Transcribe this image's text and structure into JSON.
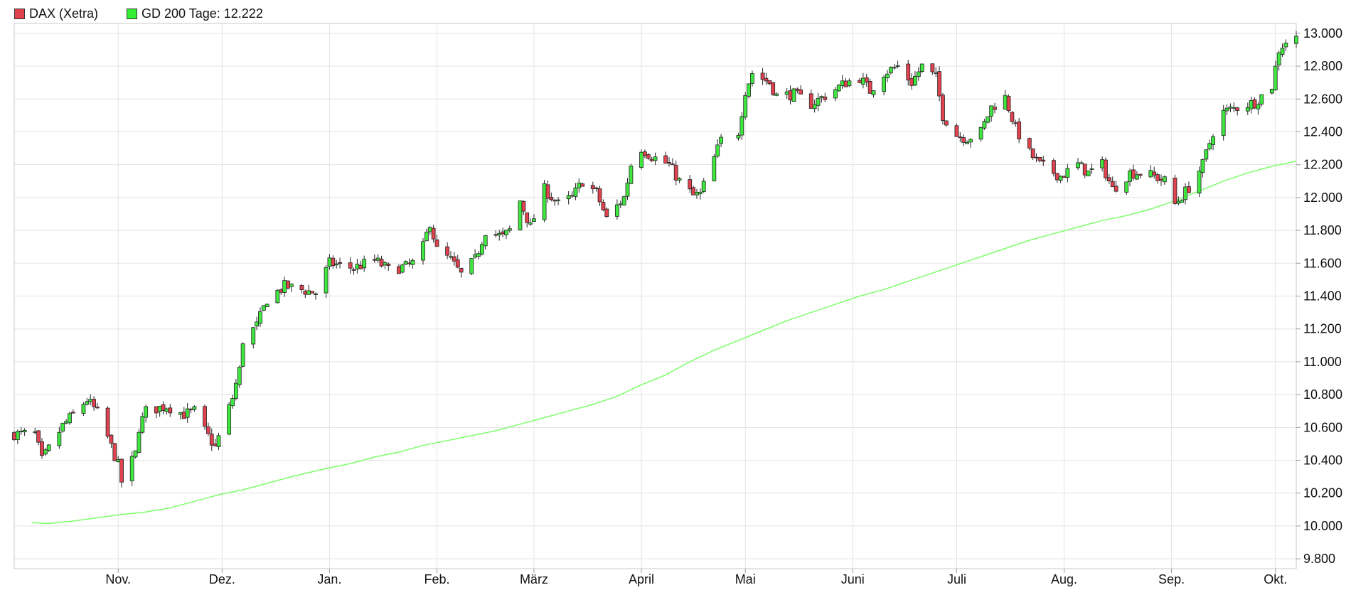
{
  "chart_data": {
    "type": "candlestick",
    "series": [
      {
        "name": "DAX (Xetra)",
        "color": "#e0424f",
        "up_color": "#3ee83e",
        "down_color": "#e0424f"
      },
      {
        "name": "GD 200 Tage: 12.222",
        "color": "#7dff6a"
      }
    ],
    "y_ticks": [
      "9.800",
      "10.000",
      "10.200",
      "10.400",
      "10.600",
      "10.800",
      "11.000",
      "11.200",
      "11.400",
      "11.600",
      "11.800",
      "12.000",
      "12.200",
      "12.400",
      "12.600",
      "12.800",
      "13.000"
    ],
    "y_tick_values": [
      9800,
      10000,
      10200,
      10400,
      10600,
      10800,
      11000,
      11200,
      11400,
      11600,
      11800,
      12000,
      12200,
      12400,
      12600,
      12800,
      13000
    ],
    "ylim": [
      9740,
      13060
    ],
    "x_labels": [
      {
        "label": "Nov.",
        "date": "2018-11-01"
      },
      {
        "label": "Dez.",
        "date": "2018-12-01"
      },
      {
        "label": "Jan.",
        "date": "2019-01-01"
      },
      {
        "label": "Feb.",
        "date": "2019-02-01"
      },
      {
        "label": "März",
        "date": "2019-03-01"
      },
      {
        "label": "April",
        "date": "2019-04-01"
      },
      {
        "label": "Mai",
        "date": "2019-05-01"
      },
      {
        "label": "Juni",
        "date": "2019-06-01"
      },
      {
        "label": "Juli",
        "date": "2019-07-01"
      },
      {
        "label": "Aug.",
        "date": "2019-08-01"
      },
      {
        "label": "Sep.",
        "date": "2019-09-01"
      },
      {
        "label": "Okt.",
        "date": "2019-10-01"
      }
    ],
    "xlim": [
      "2018-10-02",
      "2019-10-07"
    ],
    "anchors": [
      [
        "2018-10-02",
        10560
      ],
      [
        "2018-10-08",
        10560
      ],
      [
        "2018-10-10",
        10400
      ],
      [
        "2018-10-16",
        10610
      ],
      [
        "2018-10-23",
        10770
      ],
      [
        "2018-10-26",
        10690
      ],
      [
        "2018-10-29",
        10540
      ],
      [
        "2018-11-01",
        10370
      ],
      [
        "2018-11-02",
        10270
      ],
      [
        "2018-11-06",
        10440
      ],
      [
        "2018-11-07",
        10600
      ],
      [
        "2018-11-09",
        10700
      ],
      [
        "2018-11-15",
        10730
      ],
      [
        "2018-11-20",
        10680
      ],
      [
        "2018-11-23",
        10700
      ],
      [
        "2018-11-26",
        10580
      ],
      [
        "2018-11-29",
        10480
      ],
      [
        "2018-12-04",
        10780
      ],
      [
        "2018-12-06",
        10950
      ],
      [
        "2018-12-07",
        11130
      ],
      [
        "2018-12-11",
        11220
      ],
      [
        "2018-12-14",
        11380
      ],
      [
        "2018-12-19",
        11460
      ],
      [
        "2018-12-28",
        11420
      ],
      [
        "2019-01-01",
        11600
      ],
      [
        "2019-01-08",
        11570
      ],
      [
        "2019-01-14",
        11620
      ],
      [
        "2019-01-18",
        11560
      ],
      [
        "2019-01-23",
        11580
      ],
      [
        "2019-01-25",
        11600
      ],
      [
        "2019-01-28",
        11700
      ],
      [
        "2019-01-30",
        11850
      ],
      [
        "2019-02-01",
        11680
      ],
      [
        "2019-02-05",
        11620
      ],
      [
        "2019-02-08",
        11530
      ],
      [
        "2019-02-12",
        11620
      ],
      [
        "2019-02-15",
        11800
      ],
      [
        "2019-02-20",
        11760
      ],
      [
        "2019-02-22",
        11800
      ],
      [
        "2019-02-25",
        11980
      ],
      [
        "2019-02-28",
        11820
      ],
      [
        "2019-03-04",
        12050
      ],
      [
        "2019-03-08",
        11960
      ],
      [
        "2019-03-12",
        12000
      ],
      [
        "2019-03-15",
        12100
      ],
      [
        "2019-03-19",
        12030
      ],
      [
        "2019-03-22",
        11870
      ],
      [
        "2019-03-27",
        12000
      ],
      [
        "2019-03-29",
        12200
      ],
      [
        "2019-04-01",
        12300
      ],
      [
        "2019-04-04",
        12250
      ],
      [
        "2019-04-09",
        12200
      ],
      [
        "2019-04-12",
        12100
      ],
      [
        "2019-04-16",
        12010
      ],
      [
        "2019-04-18",
        12020
      ],
      [
        "2019-04-24",
        12350
      ],
      [
        "2019-04-29",
        12400
      ],
      [
        "2019-05-01",
        12650
      ],
      [
        "2019-05-03",
        12760
      ],
      [
        "2019-05-08",
        12700
      ],
      [
        "2019-05-10",
        12620
      ],
      [
        "2019-05-15",
        12630
      ],
      [
        "2019-05-20",
        12570
      ],
      [
        "2019-05-24",
        12620
      ],
      [
        "2019-05-30",
        12700
      ],
      [
        "2019-06-03",
        12730
      ],
      [
        "2019-06-06",
        12650
      ],
      [
        "2019-06-10",
        12760
      ],
      [
        "2019-06-14",
        12800
      ],
      [
        "2019-06-18",
        12700
      ],
      [
        "2019-06-21",
        12800
      ],
      [
        "2019-06-25",
        12730
      ],
      [
        "2019-06-27",
        12500
      ],
      [
        "2019-07-01",
        12380
      ],
      [
        "2019-07-04",
        12360
      ],
      [
        "2019-07-08",
        12400
      ],
      [
        "2019-07-11",
        12550
      ],
      [
        "2019-07-15",
        12610
      ],
      [
        "2019-07-18",
        12420
      ],
      [
        "2019-07-22",
        12270
      ],
      [
        "2019-07-25",
        12200
      ],
      [
        "2019-07-31",
        12130
      ],
      [
        "2019-08-05",
        12200
      ],
      [
        "2019-08-08",
        12150
      ],
      [
        "2019-08-12",
        12200
      ],
      [
        "2019-08-15",
        12050
      ],
      [
        "2019-08-20",
        12150
      ],
      [
        "2019-08-23",
        12150
      ],
      [
        "2019-08-27",
        12130
      ],
      [
        "2019-08-30",
        12100
      ],
      [
        "2019-09-02",
        11960
      ],
      [
        "2019-09-06",
        12060
      ],
      [
        "2019-09-10",
        12200
      ],
      [
        "2019-09-13",
        12400
      ],
      [
        "2019-09-16",
        12520
      ],
      [
        "2019-09-20",
        12550
      ],
      [
        "2019-09-25",
        12580
      ],
      [
        "2019-09-30",
        12680
      ],
      [
        "2019-10-02",
        12900
      ],
      [
        "2019-10-04",
        12950
      ],
      [
        "2019-10-07",
        12970
      ]
    ],
    "gaps": [
      [
        "2019-04-24",
        "2019-04-29"
      ]
    ],
    "ma_points": [
      [
        "2018-10-07",
        10020
      ],
      [
        "2018-10-12",
        10015
      ],
      [
        "2018-10-19",
        10030
      ],
      [
        "2018-10-26",
        10050
      ],
      [
        "2018-11-02",
        10070
      ],
      [
        "2018-11-09",
        10085
      ],
      [
        "2018-11-16",
        10110
      ],
      [
        "2018-11-23",
        10150
      ],
      [
        "2018-11-30",
        10190
      ],
      [
        "2018-12-07",
        10220
      ],
      [
        "2018-12-14",
        10260
      ],
      [
        "2018-12-21",
        10300
      ],
      [
        "2018-12-31",
        10350
      ],
      [
        "2019-01-07",
        10380
      ],
      [
        "2019-01-14",
        10420
      ],
      [
        "2019-01-21",
        10450
      ],
      [
        "2019-01-28",
        10490
      ],
      [
        "2019-02-04",
        10520
      ],
      [
        "2019-02-11",
        10550
      ],
      [
        "2019-02-18",
        10580
      ],
      [
        "2019-02-25",
        10620
      ],
      [
        "2019-03-04",
        10660
      ],
      [
        "2019-03-11",
        10700
      ],
      [
        "2019-03-18",
        10740
      ],
      [
        "2019-03-25",
        10790
      ],
      [
        "2019-04-01",
        10860
      ],
      [
        "2019-04-08",
        10920
      ],
      [
        "2019-04-15",
        11000
      ],
      [
        "2019-04-22",
        11070
      ],
      [
        "2019-04-29",
        11130
      ],
      [
        "2019-05-06",
        11190
      ],
      [
        "2019-05-13",
        11250
      ],
      [
        "2019-05-20",
        11300
      ],
      [
        "2019-05-27",
        11350
      ],
      [
        "2019-06-03",
        11400
      ],
      [
        "2019-06-10",
        11440
      ],
      [
        "2019-06-17",
        11490
      ],
      [
        "2019-06-24",
        11540
      ],
      [
        "2019-07-01",
        11590
      ],
      [
        "2019-07-08",
        11640
      ],
      [
        "2019-07-15",
        11690
      ],
      [
        "2019-07-22",
        11740
      ],
      [
        "2019-07-29",
        11780
      ],
      [
        "2019-08-05",
        11820
      ],
      [
        "2019-08-12",
        11860
      ],
      [
        "2019-08-19",
        11890
      ],
      [
        "2019-08-26",
        11930
      ],
      [
        "2019-09-02",
        11980
      ],
      [
        "2019-09-09",
        12040
      ],
      [
        "2019-09-16",
        12100
      ],
      [
        "2019-09-23",
        12150
      ],
      [
        "2019-09-30",
        12190
      ],
      [
        "2019-10-07",
        12222
      ]
    ],
    "grid": true,
    "legend_position": "top-left"
  }
}
